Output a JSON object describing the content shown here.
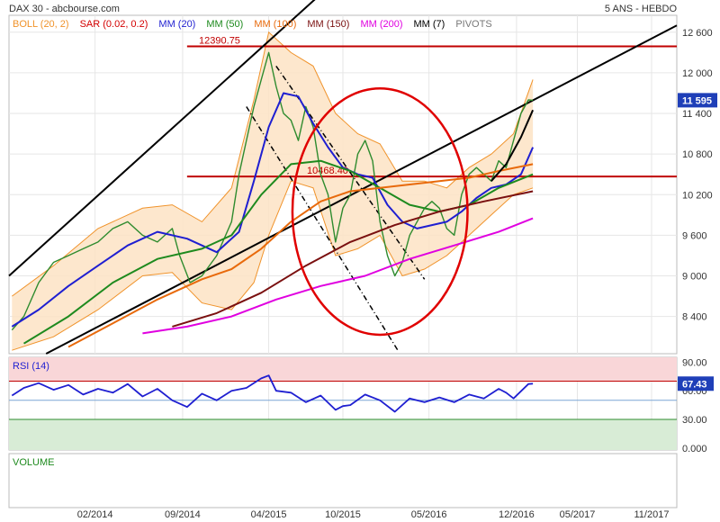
{
  "header": {
    "left": "DAX 30 - abcbourse.com",
    "right": "5 ANS - HEBDO"
  },
  "legend": [
    {
      "label": "BOLL (20, 2)",
      "color": "#f0932b"
    },
    {
      "label": "SAR (0.02, 0.2)",
      "color": "#d40000"
    },
    {
      "label": "MM (20)",
      "color": "#1f1fd1"
    },
    {
      "label": "MM (50)",
      "color": "#1e8a1e"
    },
    {
      "label": "MM (100)",
      "color": "#e86a0c"
    },
    {
      "label": "MM (150)",
      "color": "#7a1010"
    },
    {
      "label": "MM (200)",
      "color": "#e000e0"
    },
    {
      "label": "MM (7)",
      "color": "#000000"
    },
    {
      "label": "PIVOTS",
      "color": "#777777"
    }
  ],
  "chart_data": [
    {
      "type": "line",
      "title": "DAX 30",
      "yticks": [
        "12 600",
        "12 000",
        "11 400",
        "10 800",
        "10 200",
        "9 600",
        "9 000",
        "8 400"
      ],
      "ytick_values": [
        12600,
        12000,
        11400,
        10800,
        10200,
        9600,
        9000,
        8400
      ],
      "ylim": [
        7850,
        12850
      ],
      "xticks": [
        "02/2014",
        "09/2014",
        "04/2015",
        "10/2015",
        "05/2016",
        "12/2016",
        "05/2017",
        "11/2017"
      ],
      "xtick_values": [
        2014.08,
        2014.67,
        2015.25,
        2015.75,
        2016.33,
        2016.92,
        2017.33,
        2017.83
      ],
      "xlim": [
        2013.5,
        2018.0
      ],
      "last_price": "11 595",
      "levels": [
        {
          "label": "12390.75",
          "value": 12390.75,
          "color": "#c00000"
        },
        {
          "label": "10468.40",
          "value": 10468.4,
          "color": "#c00000"
        }
      ],
      "series": [
        {
          "name": "DAX 30",
          "kind": "close",
          "x": [
            2013.52,
            2013.6,
            2013.7,
            2013.8,
            2013.9,
            2014.0,
            2014.1,
            2014.2,
            2014.3,
            2014.4,
            2014.5,
            2014.6,
            2014.65,
            2014.72,
            2014.8,
            2014.9,
            2015.0,
            2015.05,
            2015.1,
            2015.15,
            2015.2,
            2015.25,
            2015.3,
            2015.35,
            2015.4,
            2015.45,
            2015.5,
            2015.55,
            2015.6,
            2015.65,
            2015.7,
            2015.75,
            2015.8,
            2015.85,
            2015.9,
            2015.95,
            2016.0,
            2016.05,
            2016.1,
            2016.15,
            2016.2,
            2016.25,
            2016.3,
            2016.35,
            2016.4,
            2016.45,
            2016.5,
            2016.55,
            2016.6,
            2016.65,
            2016.7,
            2016.75,
            2016.8,
            2016.85,
            2016.9,
            2016.95,
            2017.0,
            2017.03
          ],
          "y": [
            8200,
            8400,
            8900,
            9200,
            9300,
            9400,
            9500,
            9700,
            9800,
            9600,
            9500,
            9700,
            9300,
            8900,
            9000,
            9300,
            9800,
            10500,
            11000,
            11500,
            11900,
            12300,
            11800,
            11400,
            11300,
            11000,
            11500,
            11200,
            10500,
            10200,
            9500,
            10000,
            10200,
            10800,
            11000,
            10700,
            9800,
            9300,
            9000,
            9200,
            9600,
            9800,
            10000,
            10100,
            10000,
            9700,
            9600,
            10200,
            10500,
            10600,
            10500,
            10400,
            10700,
            10600,
            11000,
            11400,
            11600,
            11595
          ]
        },
        {
          "name": "MM (20)",
          "kind": "ma",
          "x": [
            2013.52,
            2013.7,
            2013.9,
            2014.1,
            2014.3,
            2014.5,
            2014.7,
            2014.9,
            2015.05,
            2015.15,
            2015.25,
            2015.35,
            2015.45,
            2015.55,
            2015.65,
            2015.75,
            2015.85,
            2015.95,
            2016.05,
            2016.15,
            2016.25,
            2016.35,
            2016.45,
            2016.55,
            2016.65,
            2016.75,
            2016.85,
            2016.95,
            2017.03
          ],
          "y": [
            8250,
            8500,
            8850,
            9150,
            9450,
            9650,
            9550,
            9350,
            9650,
            10400,
            11200,
            11700,
            11650,
            11250,
            10900,
            10600,
            10500,
            10450,
            10050,
            9800,
            9700,
            9750,
            9800,
            9950,
            10150,
            10300,
            10350,
            10500,
            10900
          ]
        },
        {
          "name": "MM (50)",
          "kind": "ma",
          "x": [
            2013.6,
            2013.9,
            2014.2,
            2014.5,
            2014.8,
            2015.0,
            2015.2,
            2015.4,
            2015.6,
            2015.8,
            2016.0,
            2016.2,
            2016.4,
            2016.6,
            2016.8,
            2017.03
          ],
          "y": [
            8000,
            8400,
            8900,
            9250,
            9400,
            9600,
            10200,
            10650,
            10700,
            10550,
            10300,
            10050,
            9950,
            10050,
            10300,
            10500
          ]
        },
        {
          "name": "MM (100)",
          "kind": "ma",
          "x": [
            2013.9,
            2014.2,
            2014.5,
            2014.8,
            2015.0,
            2015.2,
            2015.4,
            2015.6,
            2015.8,
            2016.0,
            2016.2,
            2016.4,
            2016.6,
            2016.8,
            2017.03
          ],
          "y": [
            7950,
            8300,
            8650,
            8950,
            9100,
            9400,
            9800,
            10100,
            10250,
            10300,
            10350,
            10400,
            10450,
            10550,
            10650
          ]
        },
        {
          "name": "MM (150)",
          "kind": "ma",
          "x": [
            2014.6,
            2014.9,
            2015.2,
            2015.5,
            2015.8,
            2016.1,
            2016.4,
            2016.7,
            2017.03
          ],
          "y": [
            8250,
            8450,
            8750,
            9150,
            9500,
            9750,
            9950,
            10100,
            10250
          ]
        },
        {
          "name": "MM (200)",
          "kind": "ma",
          "x": [
            2014.4,
            2014.7,
            2015.0,
            2015.3,
            2015.6,
            2015.9,
            2016.2,
            2016.5,
            2016.8,
            2017.03
          ],
          "y": [
            8150,
            8250,
            8400,
            8650,
            8850,
            9000,
            9250,
            9450,
            9650,
            9850
          ]
        },
        {
          "name": "MM (7)",
          "kind": "ma",
          "x": [
            2016.75,
            2016.85,
            2016.95,
            2017.03
          ],
          "y": [
            10400,
            10650,
            11050,
            11450
          ]
        }
      ],
      "bollinger_upper": {
        "x": [
          2013.52,
          2013.8,
          2014.1,
          2014.4,
          2014.6,
          2014.8,
          2015.0,
          2015.15,
          2015.25,
          2015.4,
          2015.55,
          2015.7,
          2015.85,
          2016.0,
          2016.15,
          2016.3,
          2016.45,
          2016.6,
          2016.75,
          2016.9,
          2017.03
        ],
        "y": [
          8700,
          9150,
          9700,
          10000,
          10050,
          9800,
          10300,
          11600,
          12600,
          12300,
          12100,
          11400,
          11100,
          10950,
          10400,
          10400,
          10300,
          10600,
          10800,
          11100,
          11900
        ]
      },
      "bollinger_lower": {
        "x": [
          2013.52,
          2013.8,
          2014.1,
          2014.4,
          2014.6,
          2014.8,
          2015.0,
          2015.15,
          2015.25,
          2015.4,
          2015.55,
          2015.7,
          2015.85,
          2016.0,
          2016.15,
          2016.3,
          2016.45,
          2016.6,
          2016.75,
          2016.9,
          2017.03
        ],
        "y": [
          7900,
          8100,
          8500,
          9000,
          9050,
          8600,
          8500,
          8900,
          9600,
          10400,
          10300,
          9300,
          9400,
          9600,
          9000,
          9100,
          9300,
          9600,
          9900,
          10200,
          10300
        ]
      },
      "trendlines": [
        {
          "x": [
            2013.5,
            2015.72
          ],
          "y": [
            9000,
            13400
          ],
          "color": "#000000"
        },
        {
          "x": [
            2013.75,
            2018.0
          ],
          "y": [
            7850,
            12700
          ],
          "color": "#000000"
        },
        {
          "x": [
            2015.1,
            2016.12
          ],
          "y": [
            11500,
            7900
          ],
          "color": "#000000",
          "dash": true
        },
        {
          "x": [
            2015.3,
            2016.3
          ],
          "y": [
            12100,
            8950
          ],
          "color": "#000000",
          "dash": true
        }
      ],
      "circle": {
        "cx": 2016.0,
        "cy": 9950,
        "rx_years": 0.59,
        "ry_value": 1820,
        "color": "#e00000"
      }
    },
    {
      "type": "line",
      "title": "RSI (14)",
      "yticks": [
        "90.00",
        "60.00",
        "30.00",
        "0.000"
      ],
      "ytick_values": [
        90,
        60,
        30,
        0
      ],
      "ylim": [
        -2,
        95
      ],
      "last_value": "67.43",
      "overbought": 70,
      "oversold": 30,
      "middle": 50,
      "series": [
        {
          "name": "RSI (14)",
          "x": [
            2013.52,
            2013.6,
            2013.7,
            2013.8,
            2013.9,
            2014.0,
            2014.1,
            2014.2,
            2014.3,
            2014.4,
            2014.5,
            2014.6,
            2014.7,
            2014.8,
            2014.9,
            2015.0,
            2015.1,
            2015.2,
            2015.25,
            2015.3,
            2015.4,
            2015.5,
            2015.6,
            2015.7,
            2015.75,
            2015.8,
            2015.9,
            2016.0,
            2016.1,
            2016.2,
            2016.3,
            2016.4,
            2016.5,
            2016.6,
            2016.7,
            2016.8,
            2016.85,
            2016.9,
            2017.0,
            2017.03
          ],
          "y": [
            55,
            63,
            68,
            61,
            66,
            56,
            62,
            58,
            67,
            54,
            62,
            50,
            43,
            57,
            50,
            60,
            63,
            73,
            76,
            60,
            58,
            48,
            55,
            40,
            44,
            45,
            56,
            50,
            38,
            52,
            48,
            53,
            48,
            56,
            52,
            62,
            58,
            52,
            67,
            67.43
          ]
        }
      ]
    },
    {
      "type": "bar",
      "title": "VOLUME",
      "series": []
    }
  ]
}
